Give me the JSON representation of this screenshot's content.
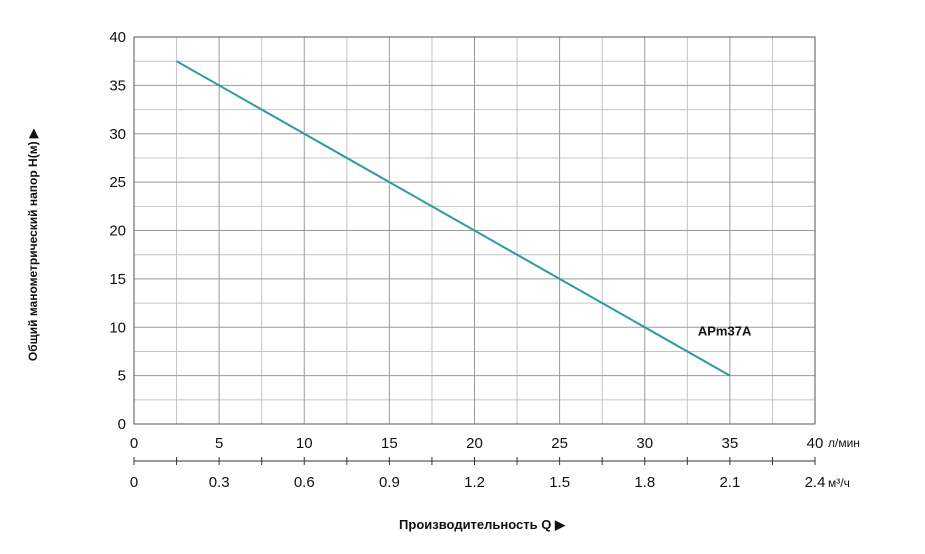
{
  "chart_data": {
    "type": "line",
    "ylabel": "Общий манометрический напор H(м) ▶",
    "xlabel": "Производительность Q ▶",
    "x_unit_primary": "л/мин",
    "x_unit_secondary": "м³/ч",
    "xlim": [
      0,
      40
    ],
    "ylim": [
      0,
      40
    ],
    "grid": true,
    "x_ticks": [
      "0",
      "5",
      "10",
      "15",
      "20",
      "25",
      "30",
      "35",
      "40"
    ],
    "x_ticks_secondary": [
      "0",
      "0.3",
      "0.6",
      "0.9",
      "1.2",
      "1.5",
      "1.8",
      "2.1",
      "2.4"
    ],
    "y_ticks": [
      "0",
      "5",
      "10",
      "15",
      "20",
      "25",
      "30",
      "35",
      "40"
    ],
    "series": [
      {
        "name": "APm37A",
        "color": "#2b9aa6",
        "x": [
          2.5,
          35
        ],
        "y": [
          37.5,
          5
        ]
      }
    ]
  }
}
